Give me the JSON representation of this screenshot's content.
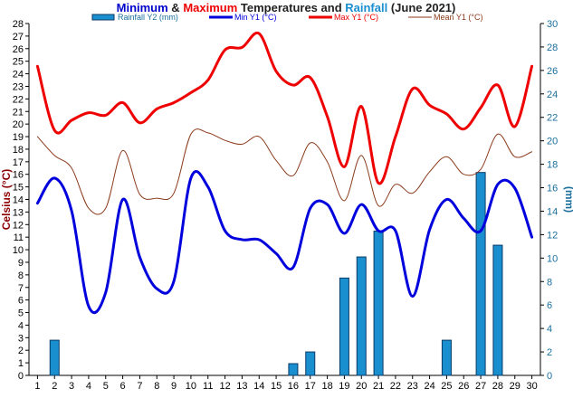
{
  "title": {
    "part1": "Minimum",
    "part2": " & ",
    "part3": "Maximum",
    "part4": " Temperatures and ",
    "part5": "Rainfall",
    "part6": " (June 2021)"
  },
  "colors": {
    "min": "#0000dd",
    "max": "#ee0000",
    "mean": "#8b3a1a",
    "rain_fill": "#1a8fd0",
    "rain_stroke": "#0a3a66",
    "left_axis": "#8b0000",
    "right_axis": "#1a6f9c",
    "title_blue": "#0000cc",
    "title_red": "#ee0000",
    "title_dark": "#222222",
    "title_rain": "#1a8fd0"
  },
  "chart_data": {
    "type": "line",
    "x": [
      1,
      2,
      3,
      4,
      5,
      6,
      7,
      8,
      9,
      10,
      11,
      12,
      13,
      14,
      15,
      16,
      17,
      18,
      19,
      20,
      21,
      22,
      23,
      24,
      25,
      26,
      27,
      28,
      29,
      30
    ],
    "xlim": [
      0.5,
      30.5
    ],
    "ylabel": "Celsius (°C)",
    "ylim": [
      0,
      28
    ],
    "y2label": "(mm)",
    "y2lim": [
      0,
      30
    ],
    "legend": {
      "placement": "top"
    },
    "series": [
      {
        "name": "Rainfall Y2 (mm)",
        "type": "bar",
        "axis": "y2",
        "values": [
          0,
          3,
          0,
          0,
          0,
          0,
          0,
          0,
          0,
          0,
          0,
          0,
          0,
          0,
          0,
          1,
          2,
          0,
          8.3,
          10.1,
          12.3,
          0,
          0,
          0,
          3,
          0,
          17.3,
          11.1,
          0,
          0
        ]
      },
      {
        "name": "Min Y1 (°C)",
        "type": "line",
        "axis": "y1",
        "values": [
          13.7,
          15.7,
          13.1,
          5.5,
          6.6,
          14.0,
          9.4,
          6.9,
          7.5,
          15.7,
          15.0,
          11.5,
          10.8,
          10.8,
          9.7,
          8.6,
          13.3,
          13.6,
          11.3,
          13.6,
          11.5,
          11.5,
          6.3,
          11.6,
          14.0,
          12.5,
          11.5,
          15.2,
          14.9,
          11.0
        ]
      },
      {
        "name": "Max Y1 (°C)",
        "type": "line",
        "axis": "y1",
        "values": [
          24.6,
          19.5,
          20.3,
          20.9,
          20.7,
          21.7,
          20.1,
          21.2,
          21.7,
          22.5,
          23.5,
          25.9,
          26.1,
          27.2,
          24.2,
          23.1,
          23.7,
          20.6,
          16.6,
          21.4,
          15.3,
          19.0,
          22.8,
          21.5,
          20.8,
          19.6,
          21.3,
          23.1,
          19.8,
          24.6
        ]
      },
      {
        "name": "Mean Y1 (°C)",
        "type": "line",
        "axis": "y1",
        "values": [
          19.0,
          17.5,
          16.5,
          13.3,
          13.3,
          17.9,
          14.4,
          14.1,
          14.5,
          19.2,
          19.3,
          18.7,
          18.4,
          19.0,
          17.1,
          15.9,
          18.5,
          17.0,
          13.9,
          17.5,
          13.5,
          15.2,
          14.5,
          16.2,
          17.4,
          16.0,
          16.4,
          19.2,
          17.4,
          17.8
        ]
      }
    ]
  }
}
